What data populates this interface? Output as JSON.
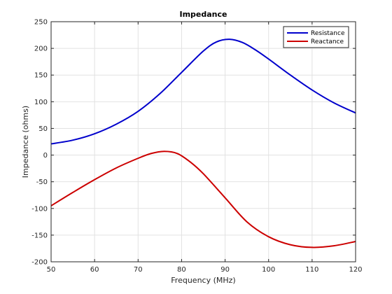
{
  "chart_data": {
    "type": "line",
    "title": "Impedance",
    "xlabel": "Frequency (MHz)",
    "ylabel": "Impedance (ohms)",
    "xlim": [
      50,
      120
    ],
    "ylim": [
      -200,
      250
    ],
    "xticks": [
      50,
      60,
      70,
      80,
      90,
      100,
      110,
      120
    ],
    "yticks": [
      -200,
      -150,
      -100,
      -50,
      0,
      50,
      100,
      150,
      200,
      250
    ],
    "grid": true,
    "legend_position": "top-right",
    "series": [
      {
        "name": "Resistance",
        "color": "#0000cc",
        "x": [
          50,
          55,
          60,
          65,
          70,
          75,
          80,
          85,
          88,
          91,
          94,
          97,
          100,
          105,
          110,
          115,
          120
        ],
        "y": [
          21,
          28,
          40,
          58,
          82,
          115,
          155,
          195,
          212,
          217,
          211,
          197,
          180,
          150,
          122,
          98,
          79
        ]
      },
      {
        "name": "Reactance",
        "color": "#cc0000",
        "x": [
          50,
          55,
          60,
          65,
          70,
          73,
          76,
          79,
          82,
          85,
          90,
          95,
          100,
          105,
          110,
          115,
          120
        ],
        "y": [
          -95,
          -70,
          -46,
          -24,
          -6,
          3,
          7,
          3,
          -13,
          -35,
          -80,
          -125,
          -153,
          -168,
          -173,
          -170,
          -162
        ]
      }
    ]
  }
}
